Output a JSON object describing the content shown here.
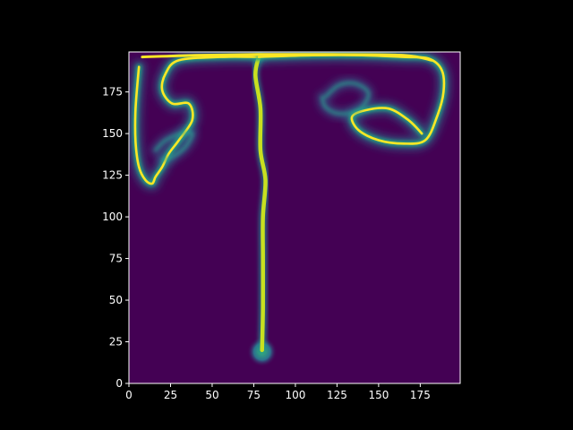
{
  "chart_data": {
    "type": "heatmap",
    "title": "",
    "xlabel": "",
    "ylabel": "",
    "xlim": [
      0,
      199
    ],
    "ylim": [
      0,
      199
    ],
    "x_ticks": [
      0,
      25,
      50,
      75,
      100,
      125,
      150,
      175
    ],
    "y_ticks": [
      0,
      25,
      50,
      75,
      100,
      125,
      150,
      175
    ],
    "x_tick_labels": [
      "0",
      "25",
      "50",
      "75",
      "100",
      "125",
      "150",
      "175"
    ],
    "y_tick_labels": [
      "0",
      "25",
      "50",
      "75",
      "100",
      "125",
      "150",
      "175"
    ],
    "colormap": "viridis",
    "value_range": [
      0,
      1
    ],
    "grid": false,
    "legend": "none",
    "colors": {
      "figure_background": "#000000",
      "field_background": "#440154",
      "axes_frame": "#ffffff",
      "tick_text": "#ffffff"
    },
    "plume": {
      "source_center": [
        80,
        19
      ],
      "source_radius": 9,
      "stem": [
        [
          80,
          20
        ],
        [
          80.5,
          45
        ],
        [
          80.5,
          75
        ],
        [
          80.5,
          100
        ],
        [
          82,
          122
        ],
        [
          79,
          140
        ],
        [
          79,
          165
        ],
        [
          76,
          185
        ],
        [
          78,
          196
        ]
      ],
      "left_arm": [
        [
          78,
          196
        ],
        [
          55,
          196
        ],
        [
          30,
          194
        ],
        [
          22,
          186
        ],
        [
          20,
          176
        ],
        [
          26,
          168
        ],
        [
          36,
          168
        ],
        [
          38,
          158
        ],
        [
          30,
          146
        ],
        [
          24,
          138
        ],
        [
          20,
          130
        ],
        [
          16,
          124
        ],
        [
          14,
          120
        ],
        [
          10,
          122
        ],
        [
          6,
          130
        ],
        [
          4,
          145
        ],
        [
          4,
          165
        ],
        [
          6,
          190
        ]
      ],
      "right_arm": [
        [
          78,
          196
        ],
        [
          110,
          197
        ],
        [
          140,
          197
        ],
        [
          165,
          196
        ],
        [
          180,
          195
        ],
        [
          188,
          188
        ],
        [
          189,
          175
        ],
        [
          185,
          160
        ],
        [
          178,
          146
        ],
        [
          165,
          144
        ],
        [
          150,
          146
        ],
        [
          138,
          152
        ],
        [
          134,
          160
        ],
        [
          142,
          164
        ],
        [
          156,
          165
        ],
        [
          168,
          158
        ],
        [
          176,
          150
        ]
      ],
      "right_inner_swirl": [
        [
          118,
          172
        ],
        [
          126,
          179
        ],
        [
          136,
          180
        ],
        [
          144,
          174
        ],
        [
          138,
          164
        ],
        [
          126,
          162
        ],
        [
          118,
          166
        ],
        [
          116,
          172
        ]
      ],
      "left_inner_swirl": [
        [
          16,
          140
        ],
        [
          22,
          146
        ],
        [
          32,
          150
        ],
        [
          38,
          150
        ],
        [
          34,
          142
        ],
        [
          26,
          136
        ],
        [
          20,
          134
        ]
      ]
    }
  }
}
